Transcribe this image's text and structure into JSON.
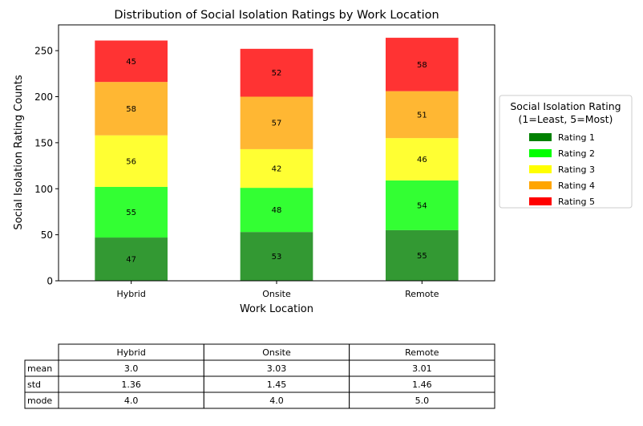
{
  "chart_data": {
    "type": "bar",
    "stacked": true,
    "title": "Distribution of Social Isolation Ratings by Work Location",
    "xlabel": "Work Location",
    "ylabel": "Social Isolation Rating Counts",
    "categories": [
      "Hybrid",
      "Onsite",
      "Remote"
    ],
    "ylim": [
      0,
      278
    ],
    "yticks": [
      0,
      50,
      100,
      150,
      200,
      250
    ],
    "grid": false,
    "legend_position": "right",
    "legend_title": "Social Isolation Rating\n(1=Least, 5=Most)",
    "series": [
      {
        "name": "Rating 1",
        "values": [
          47,
          53,
          55
        ],
        "color": "#008000"
      },
      {
        "name": "Rating 2",
        "values": [
          55,
          48,
          54
        ],
        "color": "#00ff00"
      },
      {
        "name": "Rating 3",
        "values": [
          56,
          42,
          46
        ],
        "color": "#ffff00"
      },
      {
        "name": "Rating 4",
        "values": [
          58,
          57,
          51
        ],
        "color": "#ffa500"
      },
      {
        "name": "Rating 5",
        "values": [
          45,
          52,
          58
        ],
        "color": "#ff0000"
      }
    ],
    "bar_alpha": 0.8
  },
  "table": {
    "columns": [
      "Hybrid",
      "Onsite",
      "Remote"
    ],
    "rows": [
      {
        "label": "mean",
        "values": [
          "3.0",
          "3.03",
          "3.01"
        ]
      },
      {
        "label": "std",
        "values": [
          "1.36",
          "1.45",
          "1.46"
        ]
      },
      {
        "label": "mode",
        "values": [
          "4.0",
          "4.0",
          "5.0"
        ]
      }
    ]
  }
}
